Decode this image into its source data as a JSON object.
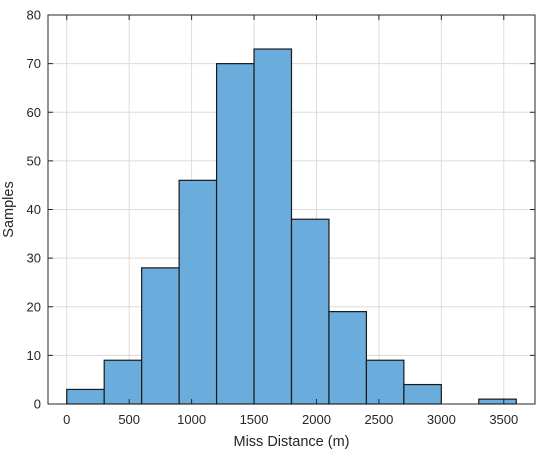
{
  "chart_data": {
    "type": "bar",
    "subtype": "histogram",
    "title": "",
    "xlabel": "Miss Distance (m)",
    "ylabel": "Samples",
    "xlim": [
      -150,
      3750
    ],
    "ylim": [
      0,
      80
    ],
    "xticks": [
      0,
      500,
      1000,
      1500,
      2000,
      2500,
      3000,
      3500
    ],
    "yticks": [
      0,
      10,
      20,
      30,
      40,
      50,
      60,
      70,
      80
    ],
    "grid": true,
    "bin_edges": [
      0,
      300,
      600,
      900,
      1200,
      1500,
      1800,
      2100,
      2400,
      2700,
      3000,
      3300,
      3600
    ],
    "values": [
      3,
      9,
      28,
      46,
      70,
      73,
      38,
      19,
      9,
      4,
      0,
      1
    ],
    "bar_color": "#6aacdc",
    "edge_color": "#1a1a1a",
    "grid_color": "#dcdcdc",
    "axis_color": "#262626"
  }
}
